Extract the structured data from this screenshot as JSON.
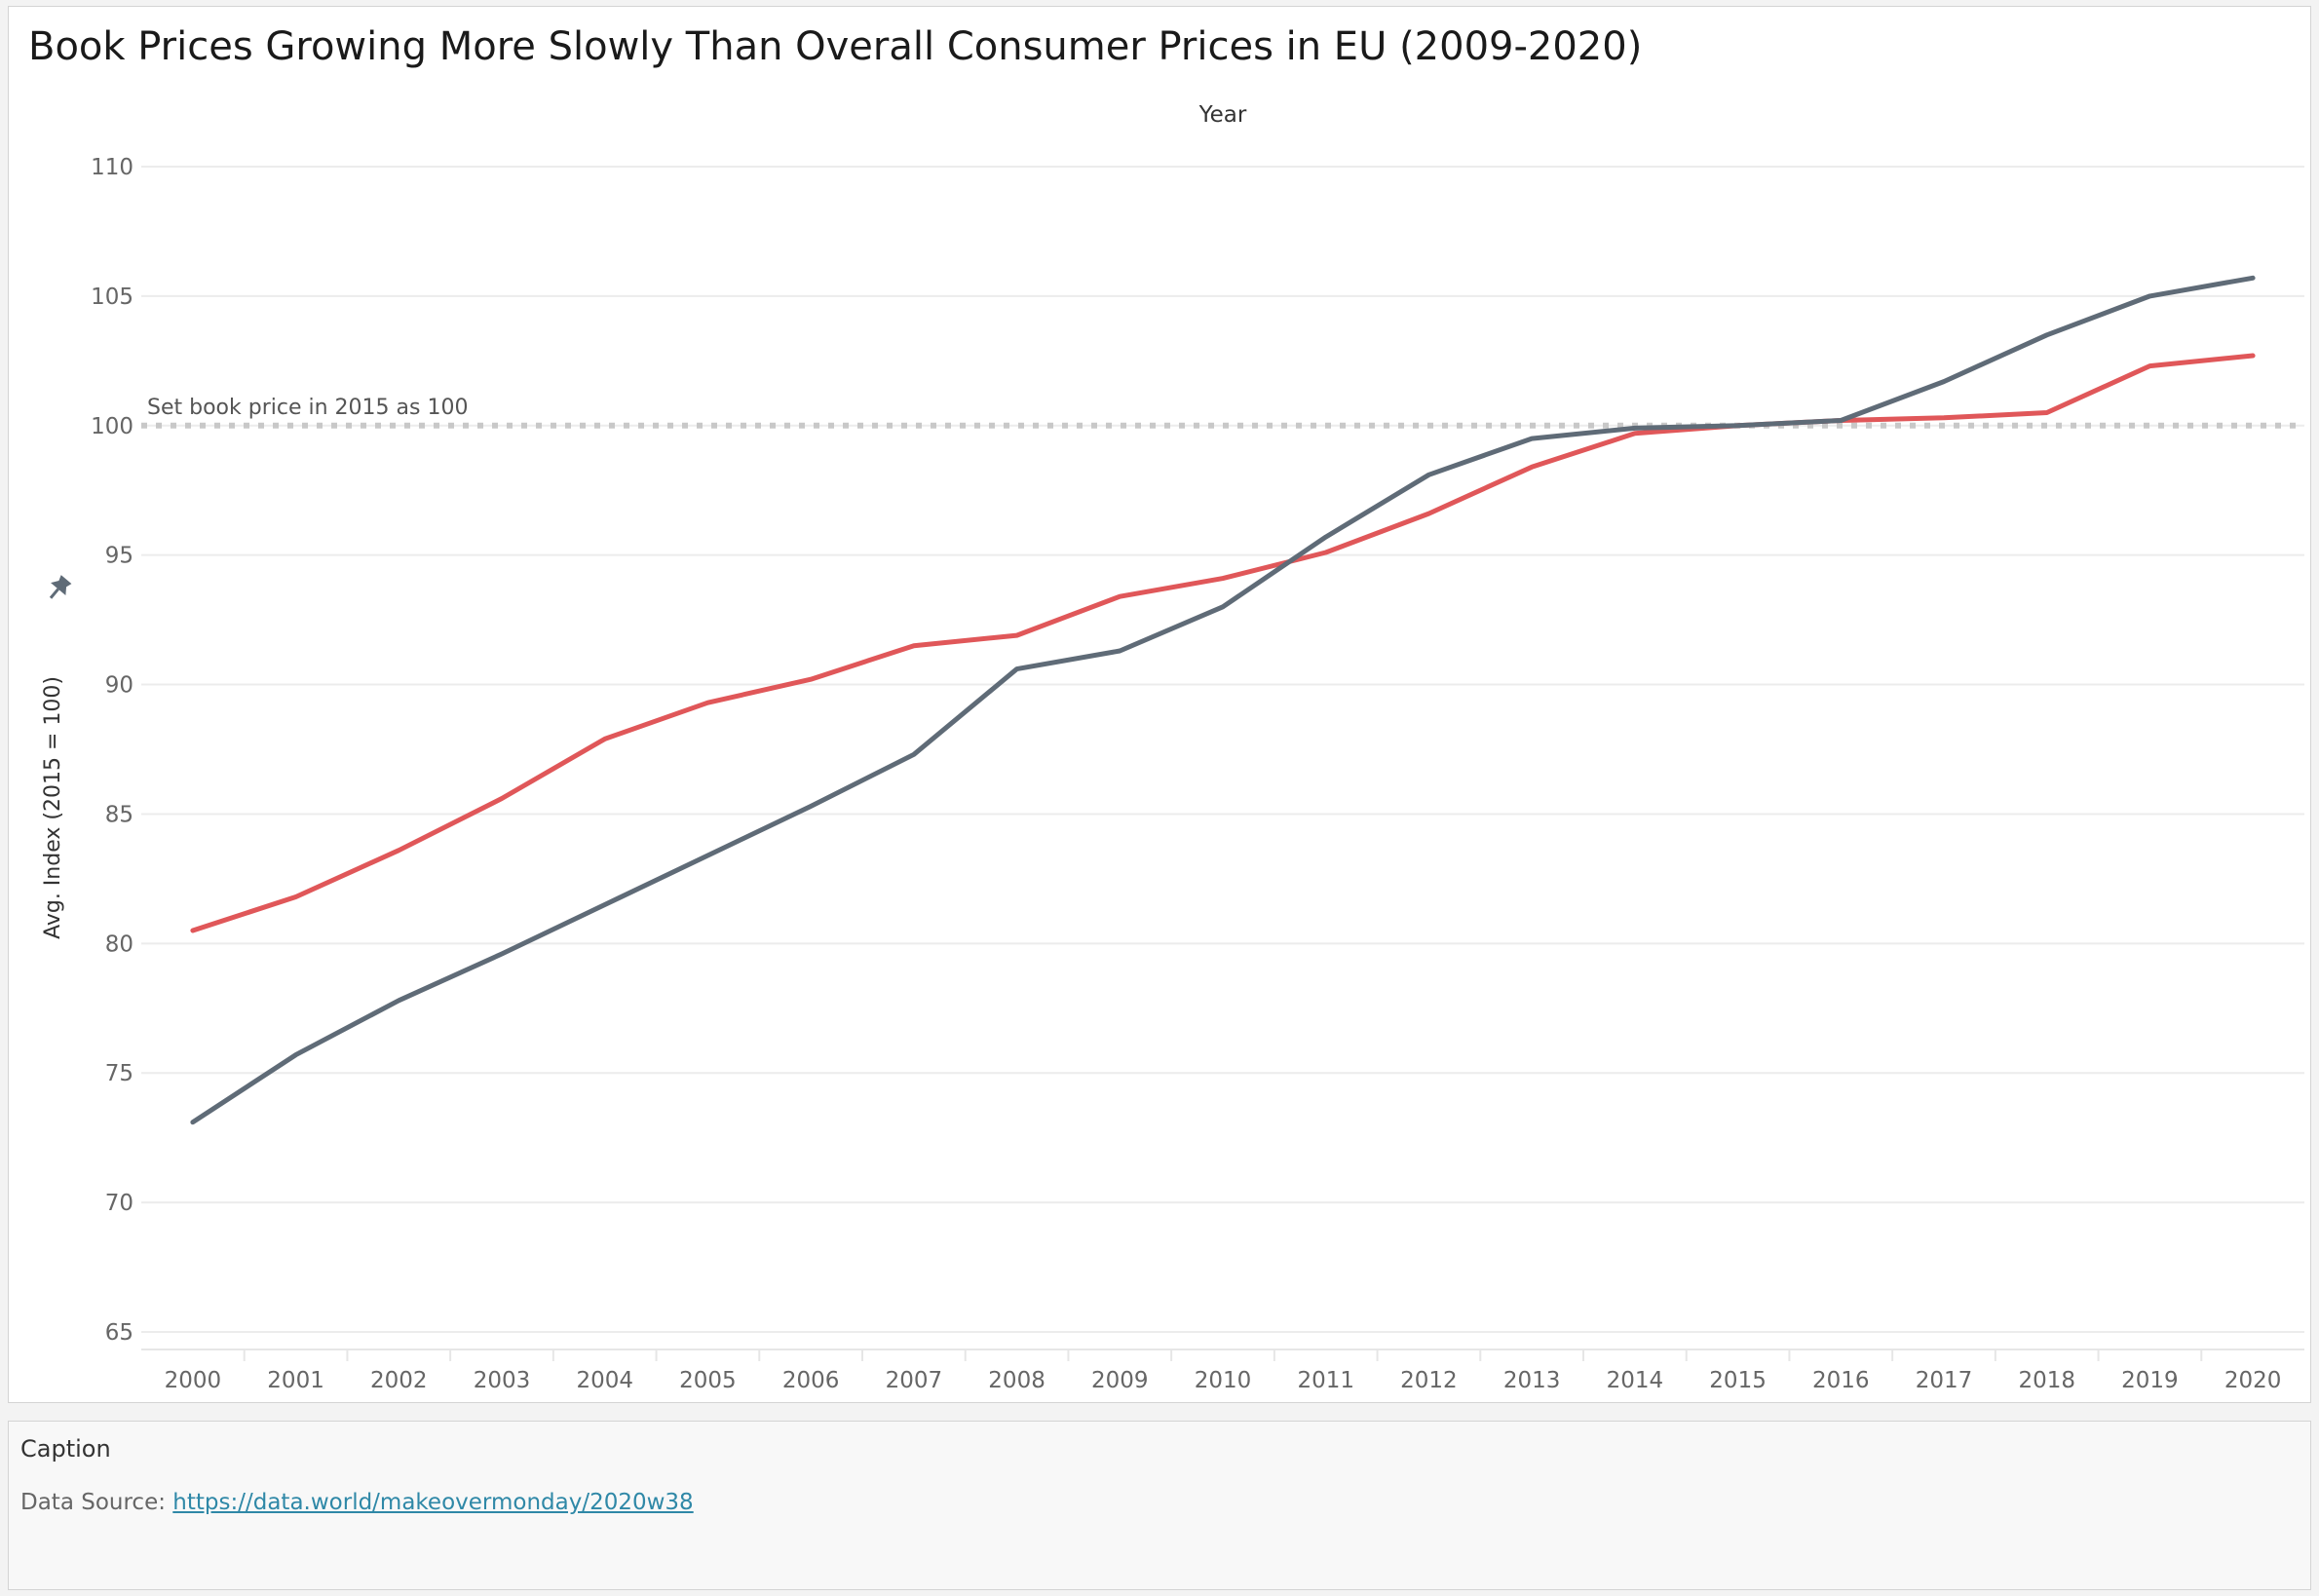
{
  "title": "Book Prices Growing More Slowly Than Overall Consumer Prices in EU (2009-2020)",
  "caption": {
    "title": "Caption",
    "source_prefix": "Data Source:",
    "source_link": "https://data.world/makeovermonday/2020w38"
  },
  "chart_data": {
    "type": "line",
    "x_axis_title": "Year",
    "ylabel": "Avg. Index (2015 = 100)",
    "ylim": [
      65,
      110
    ],
    "yticks": [
      65,
      70,
      75,
      80,
      85,
      90,
      95,
      100,
      105,
      110
    ],
    "grid": true,
    "x": [
      "2000",
      "2001",
      "2002",
      "2003",
      "2004",
      "2005",
      "2006",
      "2007",
      "2008",
      "2009",
      "2010",
      "2011",
      "2012",
      "2013",
      "2014",
      "2015",
      "2016",
      "2017",
      "2018",
      "2019",
      "2020"
    ],
    "series": [
      {
        "color": "#e05759",
        "values": [
          80.5,
          81.8,
          83.6,
          85.6,
          87.9,
          89.3,
          90.2,
          91.5,
          91.9,
          93.4,
          94.1,
          95.1,
          96.6,
          98.4,
          99.7,
          100.0,
          100.2,
          100.3,
          100.5,
          102.3,
          102.7
        ]
      },
      {
        "color": "#5f6b77",
        "values": [
          73.1,
          75.7,
          77.8,
          79.6,
          81.5,
          83.4,
          85.3,
          87.3,
          90.6,
          91.3,
          93.0,
          95.7,
          98.1,
          99.5,
          99.9,
          100.0,
          100.2,
          101.7,
          103.5,
          105.0,
          105.7
        ]
      }
    ],
    "reference_line": {
      "value": 100,
      "label": "Set book price in 2015 as 100",
      "color": "#c8c8c8"
    }
  }
}
